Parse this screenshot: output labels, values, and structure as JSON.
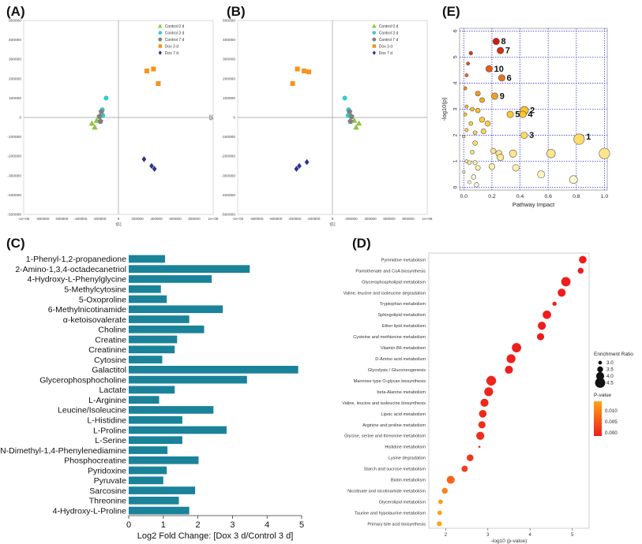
{
  "panel_labels": {
    "a": "(A)",
    "b": "(B)",
    "c": "(C)",
    "d": "(D)",
    "e": "(E)"
  },
  "chart_data": [
    {
      "panel": "A",
      "type": "scatter",
      "xlabel": "t[1]",
      "ylabel": "t[2]",
      "xlim": [
        -1000000,
        1000000
      ],
      "ylim": [
        -500000,
        500000
      ],
      "x_ticks": [
        -1000000,
        -800000,
        -600000,
        -400000,
        -200000,
        0,
        200000,
        400000,
        600000,
        800000,
        1000000
      ],
      "x_tick_labels": [
        "-1e+06",
        "-800000",
        "-600000",
        "-400000",
        "-200000",
        "0",
        "200000",
        "400000",
        "600000",
        "800000",
        "1e+06"
      ],
      "y_ticks": [
        500000,
        400000,
        300000,
        200000,
        100000,
        0,
        -100000,
        -200000,
        -300000,
        -400000,
        -500000
      ],
      "y_tick_labels": [
        "500000",
        "400000",
        "300000",
        "200000",
        "100000",
        "0",
        "-100000",
        "-200000",
        "-300000",
        "-400000",
        "-500000"
      ],
      "legend": [
        {
          "name": "Control 0 d",
          "color": "#8dc63f",
          "marker": "triangle"
        },
        {
          "name": "Control 3 d",
          "color": "#33cccc",
          "marker": "circle"
        },
        {
          "name": "Control 7 d",
          "color": "#808080",
          "marker": "pentagon"
        },
        {
          "name": "Dox 3 d",
          "color": "#f7941d",
          "marker": "square"
        },
        {
          "name": "Dox 7 d",
          "color": "#2e3192",
          "marker": "diamond"
        }
      ],
      "series": [
        {
          "name": "Control 0 d",
          "points": [
            [
              -280000,
              -30000
            ],
            [
              -250000,
              -50000
            ],
            [
              -230000,
              -15000
            ]
          ]
        },
        {
          "name": "Control 3 d",
          "points": [
            [
              -130000,
              100000
            ],
            [
              -170000,
              40000
            ],
            [
              -165000,
              10000
            ]
          ]
        },
        {
          "name": "Control 7 d",
          "points": [
            [
              -180000,
              30000
            ],
            [
              -200000,
              5000
            ],
            [
              -190000,
              -20000
            ]
          ]
        },
        {
          "name": "Dox 3 d",
          "points": [
            [
              300000,
              240000
            ],
            [
              370000,
              250000
            ],
            [
              420000,
              175000
            ]
          ]
        },
        {
          "name": "Dox 7 d",
          "points": [
            [
              270000,
              -215000
            ],
            [
              350000,
              -250000
            ],
            [
              380000,
              -265000
            ]
          ]
        }
      ]
    },
    {
      "panel": "B",
      "type": "scatter",
      "xlabel": "t[1]",
      "ylabel": "t[2]",
      "xlim": [
        -1000000,
        1000000
      ],
      "ylim": [
        -500000,
        500000
      ],
      "x_ticks": [
        -1000000,
        -800000,
        -600000,
        -400000,
        -200000,
        0,
        200000,
        400000,
        600000,
        800000,
        1000000
      ],
      "x_tick_labels": [
        "-1e+06",
        "-800000",
        "-600000",
        "-400000",
        "-200000",
        "0",
        "200000",
        "400000",
        "600000",
        "800000",
        "1e+06"
      ],
      "y_ticks": [
        500000,
        400000,
        300000,
        200000,
        100000,
        0,
        -100000,
        -200000,
        -300000,
        -400000,
        -500000
      ],
      "y_tick_labels": [
        "500000",
        "400000",
        "300000",
        "200000",
        "100000",
        "0",
        "-100000",
        "-200000",
        "-300000",
        "-400000",
        "-500000"
      ],
      "legend": [
        {
          "name": "Control 0 d",
          "color": "#8dc63f",
          "marker": "triangle"
        },
        {
          "name": "Control 3 d",
          "color": "#33cccc",
          "marker": "circle"
        },
        {
          "name": "Control 7 d",
          "color": "#808080",
          "marker": "pentagon"
        },
        {
          "name": "Dox 3 d",
          "color": "#f7941d",
          "marker": "square"
        },
        {
          "name": "Dox 7 d",
          "color": "#2e3192",
          "marker": "diamond"
        }
      ],
      "series": [
        {
          "name": "Control 0 d",
          "points": [
            [
              280000,
              -30000
            ],
            [
              250000,
              -50000
            ],
            [
              230000,
              -15000
            ]
          ]
        },
        {
          "name": "Control 3 d",
          "points": [
            [
              130000,
              100000
            ],
            [
              170000,
              40000
            ],
            [
              165000,
              10000
            ]
          ]
        },
        {
          "name": "Control 7 d",
          "points": [
            [
              180000,
              30000
            ],
            [
              200000,
              5000
            ],
            [
              190000,
              -20000
            ]
          ]
        },
        {
          "name": "Dox 3 d",
          "points": [
            [
              -300000,
              240000
            ],
            [
              -370000,
              250000
            ],
            [
              -420000,
              175000
            ],
            [
              -250000,
              235000
            ]
          ]
        },
        {
          "name": "Dox 7 d",
          "points": [
            [
              -270000,
              -230000
            ],
            [
              -350000,
              -250000
            ],
            [
              -380000,
              -265000
            ]
          ]
        }
      ]
    },
    {
      "panel": "C",
      "type": "bar",
      "orientation": "horizontal",
      "xlabel": "Log2 Fold Change: [Dox 3 d/Control 3 d]",
      "xlim": [
        0,
        5
      ],
      "x_ticks": [
        0,
        1,
        2,
        3,
        4,
        5
      ],
      "bar_color": "#1a8399",
      "categories": [
        "1-Phenyl-1,2-propanedione",
        "2-Amino-1,3,4-octadecanetriol",
        "4-Hydroxy-L-Phenylglycine",
        "5-Methylcytosine",
        "5-Oxoproline",
        "6-Methylnicotinamide",
        "α-ketoisovalerate",
        "Choline",
        "Creatine",
        "Creatinine",
        "Cytosine",
        "Galactitol",
        "Glycerophosphocholine",
        "Lactate",
        "L-Arginine",
        "Leucine/Isoleucine",
        "L-Histidine",
        "L-Proline",
        "L-Serine",
        "N,N-Dimethyl-1,4-Phenylenediamine",
        "Phosphocreatine",
        "Pyridoxine",
        "Pyruvate",
        "Sarcosine",
        "Threonine",
        "4-Hydroxy-L-Proline"
      ],
      "values": [
        1.05,
        3.5,
        2.4,
        0.93,
        1.1,
        2.72,
        1.75,
        2.18,
        1.4,
        1.33,
        0.97,
        4.9,
        3.42,
        1.33,
        0.88,
        2.45,
        1.55,
        2.83,
        1.55,
        1.12,
        2.02,
        1.1,
        1.0,
        1.92,
        1.45,
        1.75
      ]
    },
    {
      "panel": "D",
      "type": "scatter",
      "subtype": "enrichment-dot-plot",
      "xlabel": "-log10 (p-value)",
      "xlim": [
        1.6,
        5.4
      ],
      "x_ticks": [
        2,
        3,
        4,
        5
      ],
      "categories": [
        "Pyrimidine metabolism",
        "Pantothenate and CoA biosynthesis",
        "Glycerophospholipid metabolism",
        "Valine, leucine and isoleucine degradation",
        "Tryptophan metabolism",
        "Sphingolipid metabolism",
        "Ether lipid metabolism",
        "Cysteine and methionine metabolism",
        "Vitamin B6 metabolism",
        "D-Amino acid metabolism",
        "Glycolysis / Gluconeogenesis",
        "Mannose type O-glycan biosynthesis",
        "beta-Alanine metabolism",
        "Valine, leucine and isoleucine biosynthesis",
        "Lipoic acid metabolism",
        "Arginine and proline metabolism",
        "Glycine, serine and threonine metabolism",
        "Histidine metabolism",
        "Lysine degradation",
        "Starch and sucrose metabolism",
        "Biotin metabolism",
        "Nicotinate and nicotinamide metabolism",
        "Glycerolipid metabolism",
        "Taurine and hypotaurine metabolism",
        "Primary bile acid biosynthesis"
      ],
      "x": [
        5.25,
        5.2,
        4.85,
        4.75,
        4.58,
        4.4,
        4.28,
        4.25,
        3.68,
        3.55,
        3.5,
        3.08,
        3.02,
        2.92,
        2.88,
        2.86,
        2.82,
        2.8,
        2.58,
        2.45,
        2.12,
        1.98,
        1.88,
        1.86,
        1.85
      ],
      "enrichment_ratio": [
        3.9,
        3.5,
        4.3,
        4.0,
        3.1,
        4.1,
        4.0,
        3.8,
        4.3,
        4.2,
        4.0,
        4.4,
        4.2,
        4.0,
        3.9,
        3.8,
        4.0,
        2.6,
        3.7,
        3.6,
        4.0,
        3.5,
        3.2,
        3.2,
        3.3
      ],
      "p_values": [
        5e-06,
        6e-06,
        1e-05,
        2e-05,
        3e-05,
        4e-05,
        5e-05,
        6e-05,
        0.0002,
        0.0003,
        0.0003,
        0.0008,
        0.0009,
        0.0012,
        0.0013,
        0.0014,
        0.0015,
        0.0016,
        0.0026,
        0.0035,
        0.0076,
        0.0105,
        0.0132,
        0.0138,
        0.0141
      ],
      "size_legend": {
        "title": "Enrichment Ratio",
        "values": [
          3.0,
          3.5,
          4.0,
          4.5
        ],
        "labels": [
          "3.0",
          "3.5",
          "4.0",
          "4.5"
        ]
      },
      "color_legend": {
        "title": "P-value",
        "ticks": [
          "0.010",
          "0.005",
          "0.000"
        ],
        "low_color": "#ee1c1c",
        "high_color": "#ffa31a"
      }
    },
    {
      "panel": "E",
      "type": "scatter",
      "subtype": "pathway-impact-bubble",
      "xlabel": "Pathway Impact",
      "ylabel": "-log10(p)",
      "xlim": [
        -0.03,
        1.02
      ],
      "ylim": [
        -0.1,
        6.1
      ],
      "x_ticks": [
        0.0,
        0.2,
        0.4,
        0.6,
        0.8,
        1.0
      ],
      "x_tick_labels": [
        "0.0",
        "0.2",
        "0.4",
        "0.6",
        "0.8",
        "1.0"
      ],
      "y_ticks": [
        0,
        1,
        2,
        3,
        4,
        5,
        6
      ],
      "y_tick_labels": [
        "0",
        "1",
        "2",
        "3",
        "4",
        "5",
        "6"
      ],
      "grid": true,
      "points": [
        {
          "x": 0.23,
          "y": 5.6,
          "size": 2,
          "label": "8"
        },
        {
          "x": 0.26,
          "y": 5.25,
          "size": 2,
          "label": "7"
        },
        {
          "x": 0.18,
          "y": 4.55,
          "size": 2,
          "label": "10"
        },
        {
          "x": 0.27,
          "y": 4.2,
          "size": 2,
          "label": "6"
        },
        {
          "x": 0.22,
          "y": 3.5,
          "size": 2,
          "label": "9"
        },
        {
          "x": 0.43,
          "y": 2.95,
          "size": 2.5,
          "label": "2"
        },
        {
          "x": 0.42,
          "y": 2.8,
          "size": 2,
          "label": "4"
        },
        {
          "x": 0.33,
          "y": 2.8,
          "size": 2,
          "label": "5"
        },
        {
          "x": 0.43,
          "y": 2.0,
          "size": 2,
          "label": "3"
        },
        {
          "x": 0.82,
          "y": 1.85,
          "size": 3.2,
          "label": "1"
        },
        {
          "x": 0.05,
          "y": 5.15,
          "size": 1.1,
          "label": ""
        },
        {
          "x": 0.03,
          "y": 4.75,
          "size": 1,
          "label": ""
        },
        {
          "x": 0.02,
          "y": 4.3,
          "size": 1,
          "label": ""
        },
        {
          "x": 0.01,
          "y": 3.8,
          "size": 1,
          "label": ""
        },
        {
          "x": 0.1,
          "y": 3.6,
          "size": 1.5,
          "label": ""
        },
        {
          "x": 0.13,
          "y": 3.35,
          "size": 1.5,
          "label": ""
        },
        {
          "x": 0.02,
          "y": 3.1,
          "size": 1,
          "label": ""
        },
        {
          "x": 0.06,
          "y": 3.0,
          "size": 1.2,
          "label": ""
        },
        {
          "x": 0.1,
          "y": 2.95,
          "size": 1.4,
          "label": ""
        },
        {
          "x": 0.01,
          "y": 2.8,
          "size": 1,
          "label": ""
        },
        {
          "x": 0.13,
          "y": 2.6,
          "size": 1.6,
          "label": ""
        },
        {
          "x": 0.17,
          "y": 2.45,
          "size": 1.6,
          "label": ""
        },
        {
          "x": 0.05,
          "y": 2.45,
          "size": 1.2,
          "label": ""
        },
        {
          "x": 0.02,
          "y": 2.2,
          "size": 1,
          "label": ""
        },
        {
          "x": 0.08,
          "y": 2.1,
          "size": 1.2,
          "label": ""
        },
        {
          "x": 0.14,
          "y": 2.15,
          "size": 1.5,
          "label": ""
        },
        {
          "x": 0.0,
          "y": 1.95,
          "size": 0.8,
          "label": ""
        },
        {
          "x": 0.08,
          "y": 1.7,
          "size": 1.4,
          "label": ""
        },
        {
          "x": 0.21,
          "y": 1.4,
          "size": 1.6,
          "label": ""
        },
        {
          "x": 0.25,
          "y": 1.3,
          "size": 1.9,
          "label": ""
        },
        {
          "x": 0.26,
          "y": 1.15,
          "size": 2,
          "label": ""
        },
        {
          "x": 0.35,
          "y": 1.3,
          "size": 2.2,
          "label": ""
        },
        {
          "x": 0.62,
          "y": 1.3,
          "size": 2.6,
          "label": ""
        },
        {
          "x": 1.0,
          "y": 1.3,
          "size": 3.2,
          "label": ""
        },
        {
          "x": 0.06,
          "y": 1.35,
          "size": 1.2,
          "label": ""
        },
        {
          "x": 0.02,
          "y": 1.0,
          "size": 1,
          "label": ""
        },
        {
          "x": 0.04,
          "y": 0.95,
          "size": 1.2,
          "label": ""
        },
        {
          "x": 0.08,
          "y": 0.95,
          "size": 1.3,
          "label": ""
        },
        {
          "x": 0.1,
          "y": 0.75,
          "size": 1.5,
          "label": ""
        },
        {
          "x": 0.2,
          "y": 0.8,
          "size": 1.8,
          "label": ""
        },
        {
          "x": 0.37,
          "y": 0.75,
          "size": 2,
          "label": ""
        },
        {
          "x": 0.55,
          "y": 0.5,
          "size": 2.2,
          "label": ""
        },
        {
          "x": 0.78,
          "y": 0.3,
          "size": 2.4,
          "label": ""
        },
        {
          "x": 0.0,
          "y": 0.6,
          "size": 0.8,
          "label": ""
        },
        {
          "x": 0.07,
          "y": 0.4,
          "size": 1.4,
          "label": ""
        },
        {
          "x": 0.04,
          "y": 0.2,
          "size": 1.0,
          "label": ""
        },
        {
          "x": 0.09,
          "y": 0.1,
          "size": 1.4,
          "label": ""
        }
      ]
    }
  ]
}
